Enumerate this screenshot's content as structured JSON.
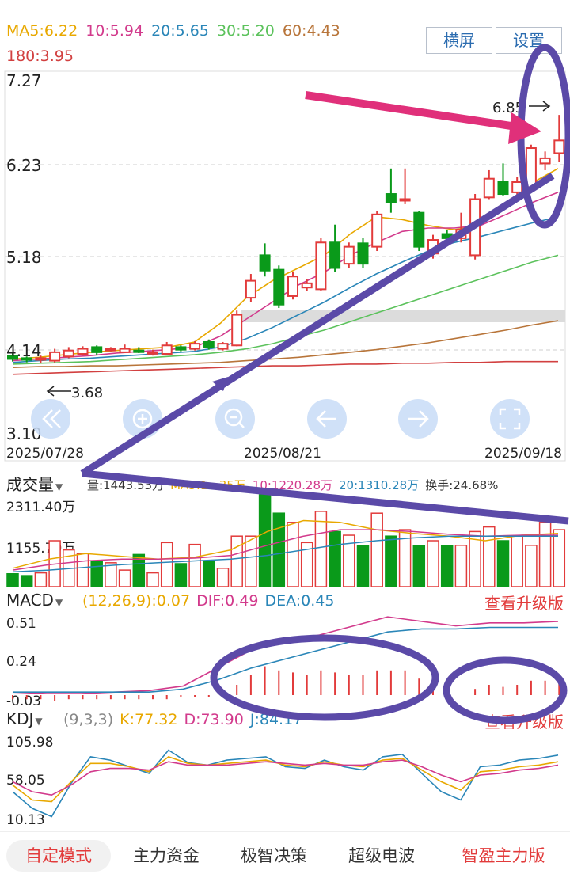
{
  "ma_header": {
    "ma5": "MA5:6.22",
    "ma10": "10:5.94",
    "ma20": "20:5.65",
    "ma30": "30:5.20",
    "ma60": "60:4.43",
    "ma180": "180:3.95"
  },
  "buttons": {
    "landscape": "横屏",
    "settings": "设置"
  },
  "price_axis": [
    "7.27",
    "6.23",
    "5.18",
    "4.14",
    "3.10"
  ],
  "price_annotations": {
    "high": "6.85",
    "low": "3.68"
  },
  "dates": [
    "2025/07/28",
    "2025/08/21",
    "2025/09/18"
  ],
  "volume": {
    "title": "成交量",
    "stats": [
      "量:1443.53万",
      "MA5:1...35万",
      "10:1220.28万",
      "20:1310.28万",
      "换手:24.68%"
    ],
    "axis": [
      "2311.40万",
      "1155.70万"
    ]
  },
  "macd": {
    "title": "MACD",
    "params": "(12,26,9):0.07",
    "dif": "DIF:0.49",
    "dea": "DEA:0.45",
    "upgrade": "查看升级版",
    "axis": [
      "0.51",
      "0.24",
      "-0.03"
    ]
  },
  "kdj": {
    "title": "KDJ",
    "params": "(9,3,3)",
    "k": "K:77.32",
    "d": "D:73.90",
    "j": "J:84.17",
    "upgrade": "查看升级版",
    "axis": [
      "105.98",
      "58.05",
      "10.13"
    ]
  },
  "tabs": [
    "自定模式",
    "主力资金",
    "极智决策",
    "超级电波",
    "智盈主力版"
  ],
  "colors": {
    "up": "#e23b3b",
    "down": "#0a9a1a",
    "ma5": "#e8a800",
    "ma10": "#d23a8c",
    "ma20": "#2a86b8",
    "ma30": "#5cc25c",
    "ma60": "#b8753a",
    "ma180": "#d24040",
    "annotation_purple": "#5b4aa8",
    "annotation_pink": "#e0307a"
  },
  "nav_icons": [
    "double-left-icon",
    "zoom-in-icon",
    "zoom-out-icon",
    "left-arrow-icon",
    "right-arrow-icon",
    "fullscreen-icon"
  ]
}
